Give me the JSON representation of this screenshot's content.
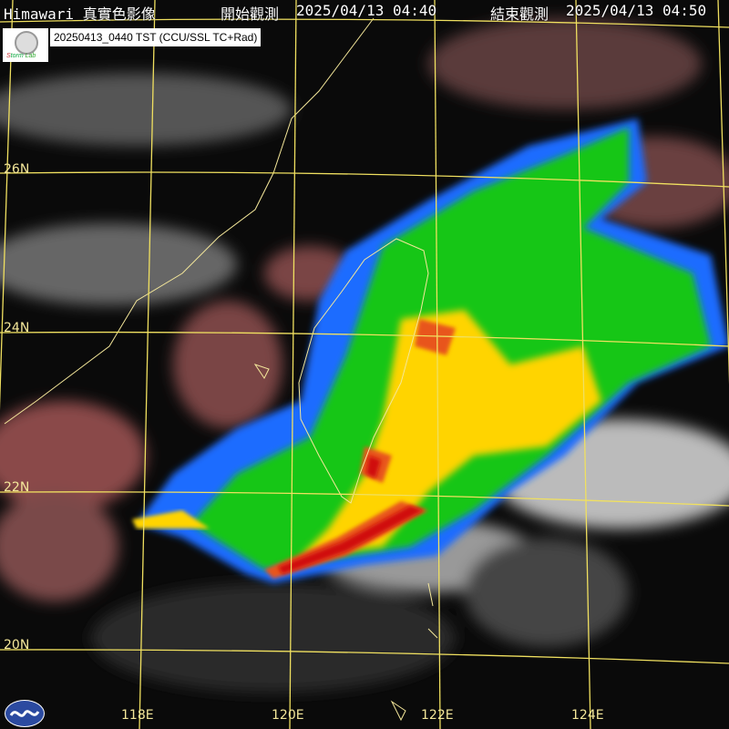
{
  "header": {
    "title": "Himawari 真實色影像",
    "start_label": "開始觀測",
    "start_time": "2025/04/13 04:40",
    "end_label": "結束觀測",
    "end_time": "2025/04/13 04:50"
  },
  "stamp": "20250413_0440 TST (CCU/SSL TC+Rad)",
  "logos": {
    "top_left": "Severe Storm Lab",
    "bottom_left": "CWA"
  },
  "latitude_labels": [
    "26N",
    "24N",
    "22N",
    "20N"
  ],
  "longitude_labels": [
    "118E",
    "120E",
    "122E",
    "124E"
  ],
  "colors": {
    "grid": "#f0e060",
    "coast": "#f4e79a",
    "radar_light": "#1e6cff",
    "radar_moderate": "#19c619",
    "radar_heavy": "#ffd400",
    "radar_intense": "#e01010"
  }
}
